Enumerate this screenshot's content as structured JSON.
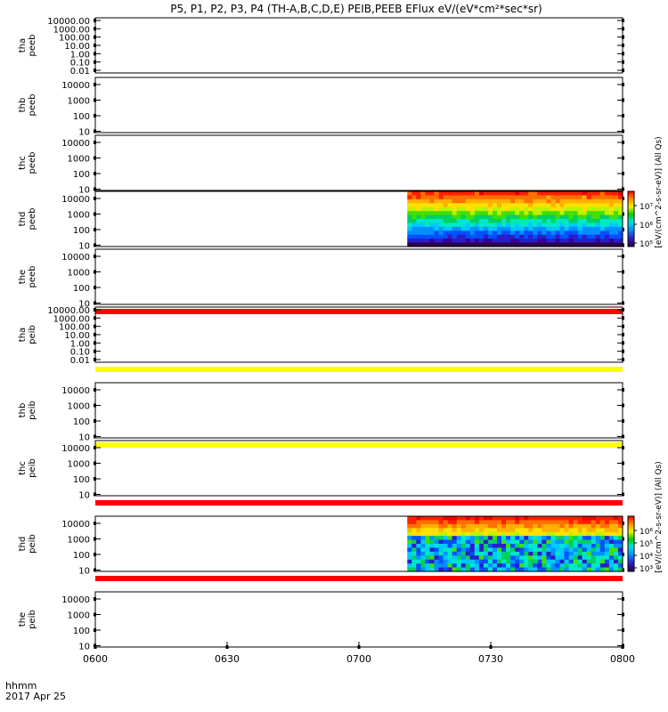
{
  "title": "P5, P1, P2, P3, P4 (TH-A,B,C,D,E) PEIB,PEEB EFlux eV/(eV*cm²*sec*sr)",
  "footer": {
    "time_label": "hhmm",
    "date_label": "2017 Apr 25"
  },
  "x_ticks": [
    "0600",
    "0630",
    "0700",
    "0730",
    "0800"
  ],
  "colorbar_label": "[eV/(cm^2-s-sr-eV)] (All Qs)",
  "chart_data": [
    {
      "type": "heatmap",
      "probe": "tha",
      "product": "peeb",
      "ylabel": [
        "tha",
        "peeb"
      ],
      "yticks": [
        "10000.00",
        "1000.00",
        "100.00",
        "10.00",
        "1.00",
        "0.10",
        "0.01"
      ],
      "has_data": false,
      "flag_color": null
    },
    {
      "type": "heatmap",
      "probe": "thb",
      "product": "peeb",
      "ylabel": [
        "thb",
        "peeb"
      ],
      "yticks": [
        "10000",
        "1000",
        "100",
        "10"
      ],
      "has_data": false,
      "flag_color": null
    },
    {
      "type": "heatmap",
      "probe": "thc",
      "product": "peeb",
      "ylabel": [
        "thc",
        "peeb"
      ],
      "yticks": [
        "10000",
        "1000",
        "100",
        "10"
      ],
      "has_data": false,
      "flag_color": null
    },
    {
      "type": "heatmap",
      "probe": "thd",
      "product": "peeb",
      "ylabel": [
        "thd",
        "peeb"
      ],
      "yticks": [
        "10000",
        "1000",
        "100",
        "10"
      ],
      "has_data": true,
      "data_start": "0711",
      "data_end": "0800",
      "flag_color": null,
      "colorbar_ticks": [
        "10⁷",
        "10⁶",
        "10⁵"
      ]
    },
    {
      "type": "heatmap",
      "probe": "the",
      "product": "peeb",
      "ylabel": [
        "the",
        "peeb"
      ],
      "yticks": [
        "10000",
        "1000",
        "100",
        "10"
      ],
      "has_data": false,
      "flag_color": "#ff0000"
    },
    {
      "type": "heatmap",
      "probe": "tha",
      "product": "peib",
      "ylabel": [
        "tha",
        "peib"
      ],
      "yticks": [
        "10000.00",
        "1000.00",
        "100.00",
        "10.00",
        "1.00",
        "0.10",
        "0.01"
      ],
      "has_data": false,
      "flag_color": "#ffff00"
    },
    {
      "type": "heatmap",
      "probe": "thb",
      "product": "peib",
      "ylabel": [
        "thb",
        "peib"
      ],
      "yticks": [
        "10000",
        "1000",
        "100",
        "10"
      ],
      "has_data": false,
      "flag_color": "#ffff00"
    },
    {
      "type": "heatmap",
      "probe": "thc",
      "product": "peib",
      "ylabel": [
        "thc",
        "peib"
      ],
      "yticks": [
        "10000",
        "1000",
        "100",
        "10"
      ],
      "has_data": false,
      "flag_color": "#ff0000"
    },
    {
      "type": "heatmap",
      "probe": "thd",
      "product": "peib",
      "ylabel": [
        "thd",
        "peib"
      ],
      "yticks": [
        "10000",
        "1000",
        "100",
        "10"
      ],
      "has_data": true,
      "data_start": "0711",
      "data_end": "0800",
      "flag_color": "#ff0000",
      "colorbar_ticks": [
        "10⁶",
        "10⁵",
        "10⁴",
        "10³"
      ]
    },
    {
      "type": "heatmap",
      "probe": "the",
      "product": "peib",
      "ylabel": [
        "the",
        "peib"
      ],
      "yticks": [
        "10000",
        "1000",
        "100",
        "10"
      ],
      "has_data": false,
      "flag_color": null
    }
  ]
}
